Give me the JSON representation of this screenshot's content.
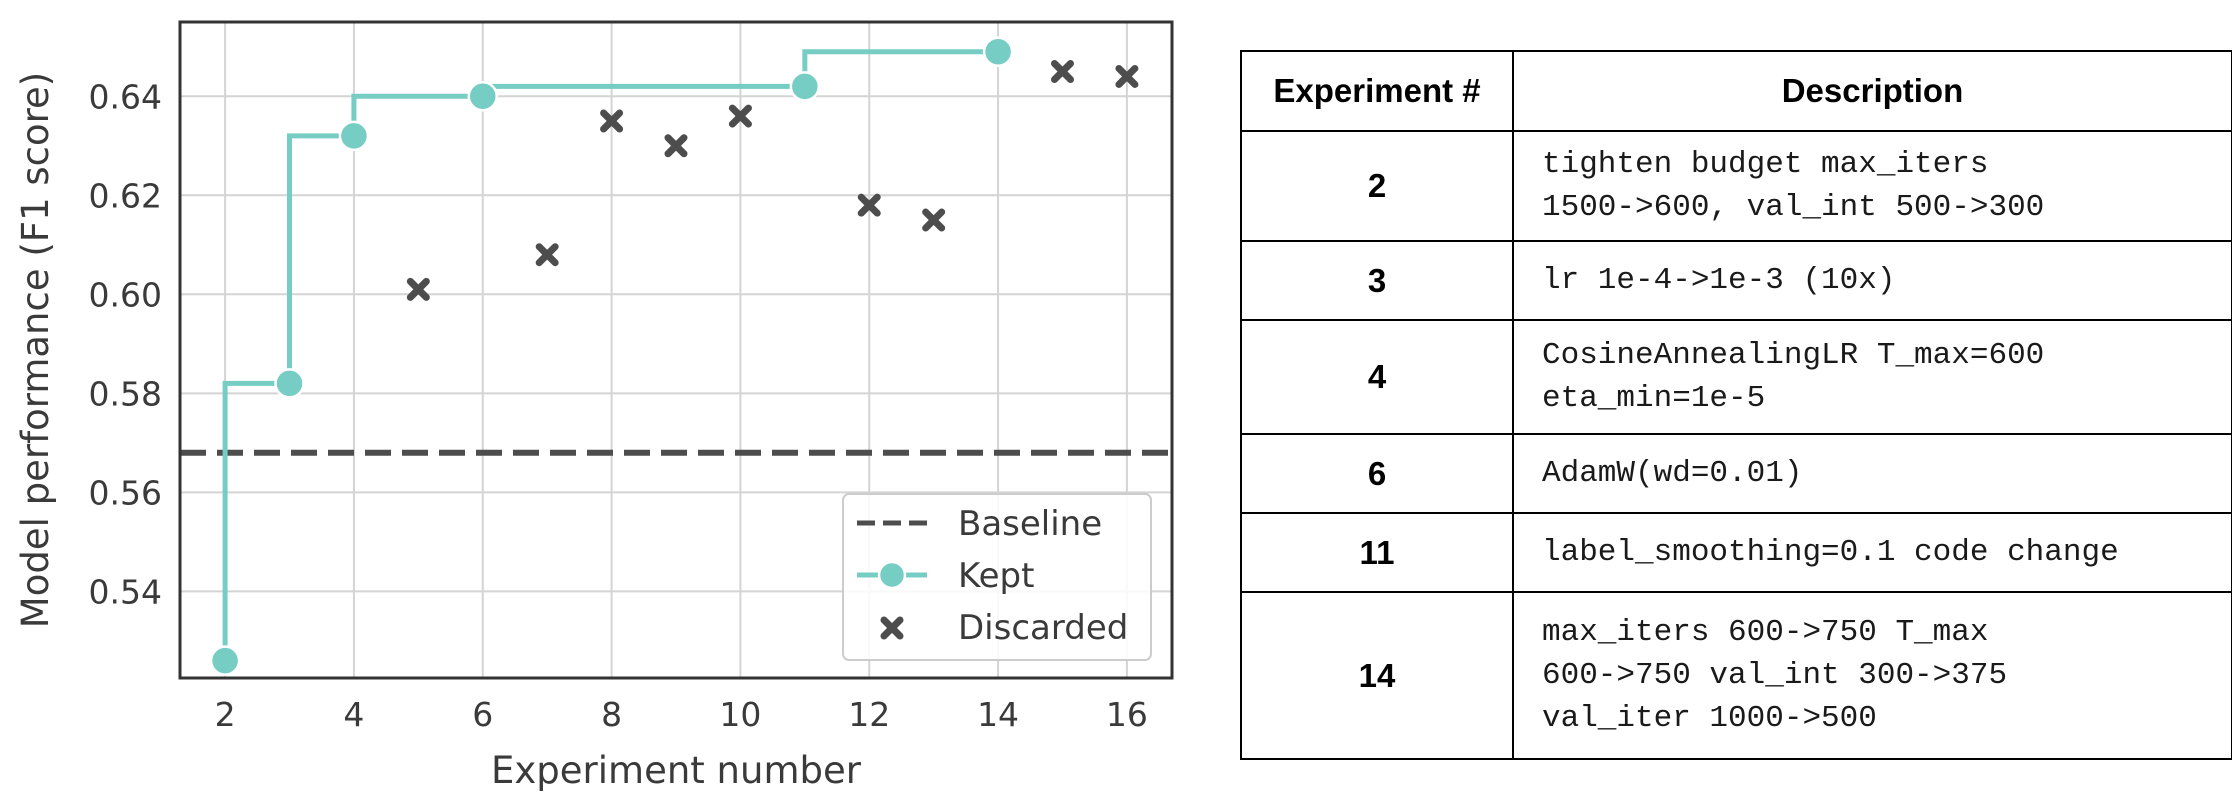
{
  "chart_data": {
    "type": "scatter",
    "xlabel": "Experiment number",
    "ylabel": "Model performance (F1 score)",
    "xlim": [
      1.3,
      16.7
    ],
    "ylim": [
      0.5225,
      0.655
    ],
    "x_ticks": [
      2,
      4,
      6,
      8,
      10,
      12,
      14,
      16
    ],
    "y_ticks": [
      0.54,
      0.56,
      0.58,
      0.6,
      0.62,
      0.64
    ],
    "grid": true,
    "legend_position": "bottom-right",
    "baseline": {
      "name": "Baseline",
      "value": 0.568,
      "color": "#4d4d4d",
      "style": "dashed"
    },
    "kept": {
      "name": "Kept",
      "color": "#76cdc4",
      "points": [
        {
          "x": 2,
          "y": 0.526
        },
        {
          "x": 3,
          "y": 0.582
        },
        {
          "x": 4,
          "y": 0.632
        },
        {
          "x": 6,
          "y": 0.64
        },
        {
          "x": 11,
          "y": 0.642
        },
        {
          "x": 14,
          "y": 0.649
        }
      ]
    },
    "discarded": {
      "name": "Discarded",
      "color": "#4d4d4d",
      "points": [
        {
          "x": 5,
          "y": 0.601
        },
        {
          "x": 7,
          "y": 0.608
        },
        {
          "x": 8,
          "y": 0.635
        },
        {
          "x": 9,
          "y": 0.63
        },
        {
          "x": 10,
          "y": 0.636
        },
        {
          "x": 12,
          "y": 0.618
        },
        {
          "x": 13,
          "y": 0.615
        },
        {
          "x": 15,
          "y": 0.645
        },
        {
          "x": 16,
          "y": 0.644
        }
      ]
    }
  },
  "table": {
    "headers": [
      "Experiment #",
      "Description"
    ],
    "rows": [
      {
        "num": "2",
        "desc": "tighten budget max_iters\n1500->600, val_int 500->300"
      },
      {
        "num": "3",
        "desc": "lr 1e-4->1e-3 (10x)"
      },
      {
        "num": "4",
        "desc": "CosineAnnealingLR T_max=600\neta_min=1e-5"
      },
      {
        "num": "6",
        "desc": "AdamW(wd=0.01)"
      },
      {
        "num": "11",
        "desc": "label_smoothing=0.1 code change"
      },
      {
        "num": "14",
        "desc": "max_iters 600->750 T_max\n600->750 val_int 300->375\nval_iter 1000->500"
      }
    ]
  }
}
